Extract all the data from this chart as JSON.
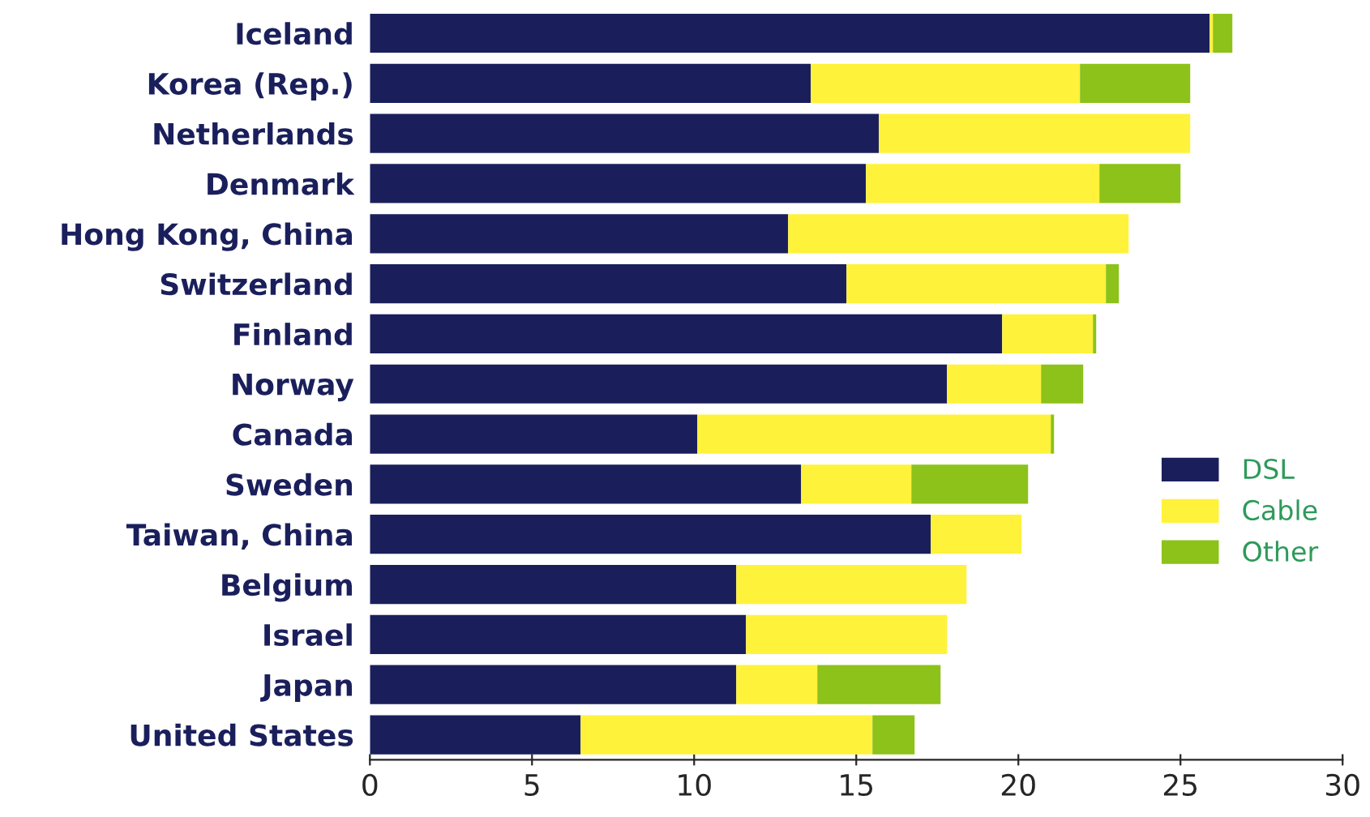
{
  "chart_data": {
    "type": "bar",
    "orientation": "horizontal",
    "stacked": true,
    "categories": [
      "Iceland",
      "Korea (Rep.)",
      "Netherlands",
      "Denmark",
      "Hong Kong, China",
      "Switzerland",
      "Finland",
      "Norway",
      "Canada",
      "Sweden",
      "Taiwan, China",
      "Belgium",
      "Israel",
      "Japan",
      "United States"
    ],
    "series": [
      {
        "name": "DSL",
        "color": "#1a1f5c",
        "values": [
          25.9,
          13.6,
          15.7,
          15.3,
          12.9,
          14.7,
          19.5,
          17.8,
          10.1,
          13.3,
          17.3,
          11.3,
          11.6,
          11.3,
          6.5
        ]
      },
      {
        "name": "Cable",
        "color": "#fff23a",
        "values": [
          0.1,
          8.3,
          9.6,
          7.2,
          10.5,
          8.0,
          2.8,
          2.9,
          10.9,
          3.4,
          2.8,
          7.1,
          6.2,
          2.5,
          9.0
        ]
      },
      {
        "name": "Other",
        "color": "#8cc21a",
        "values": [
          0.6,
          3.4,
          0,
          2.5,
          0,
          0.4,
          0.1,
          1.3,
          0.1,
          3.6,
          0,
          0,
          0,
          3.8,
          1.3
        ]
      }
    ],
    "xlim": [
      0,
      30
    ],
    "xticks": [
      0,
      5,
      10,
      15,
      20,
      25,
      30
    ],
    "grid": false,
    "legend": "right"
  }
}
